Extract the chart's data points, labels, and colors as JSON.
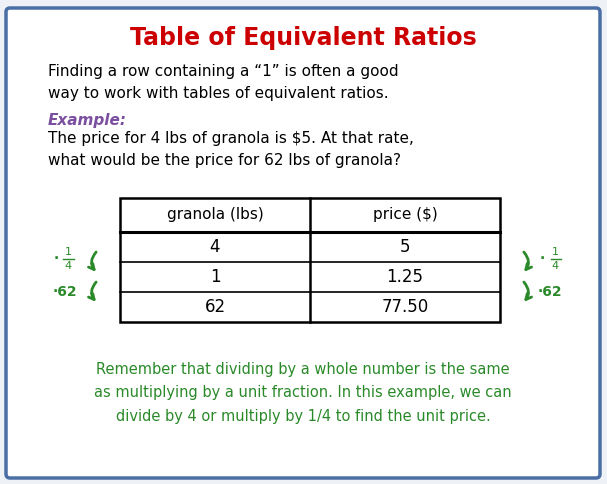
{
  "title": "Table of Equivalent Ratios",
  "title_color": "#cc0000",
  "bg_color": "#eef2f7",
  "border_color": "#4a6fa5",
  "intro_text": "Finding a row containing a “1” is often a good\nway to work with tables of equivalent ratios.",
  "example_label": "Example:",
  "example_label_color": "#7b4fa0",
  "example_text": "The price for 4 lbs of granola is $5. At that rate,\nwhat would be the price for 62 lbs of granola?",
  "table_headers": [
    "granola (lbs)",
    "price ($)"
  ],
  "table_rows": [
    [
      "4",
      "5"
    ],
    [
      "1",
      "1.25"
    ],
    [
      "62",
      "77.50"
    ]
  ],
  "footer_text": "Remember that dividing by a whole number is the same\nas multiplying by a unit fraction. In this example, we can\ndivide by 4 or multiply by 1/4 to find the unit price.",
  "footer_color": "#2a8a2a",
  "arrow_color": "#2a8a2a",
  "figwidth": 6.07,
  "figheight": 4.84,
  "dpi": 100
}
